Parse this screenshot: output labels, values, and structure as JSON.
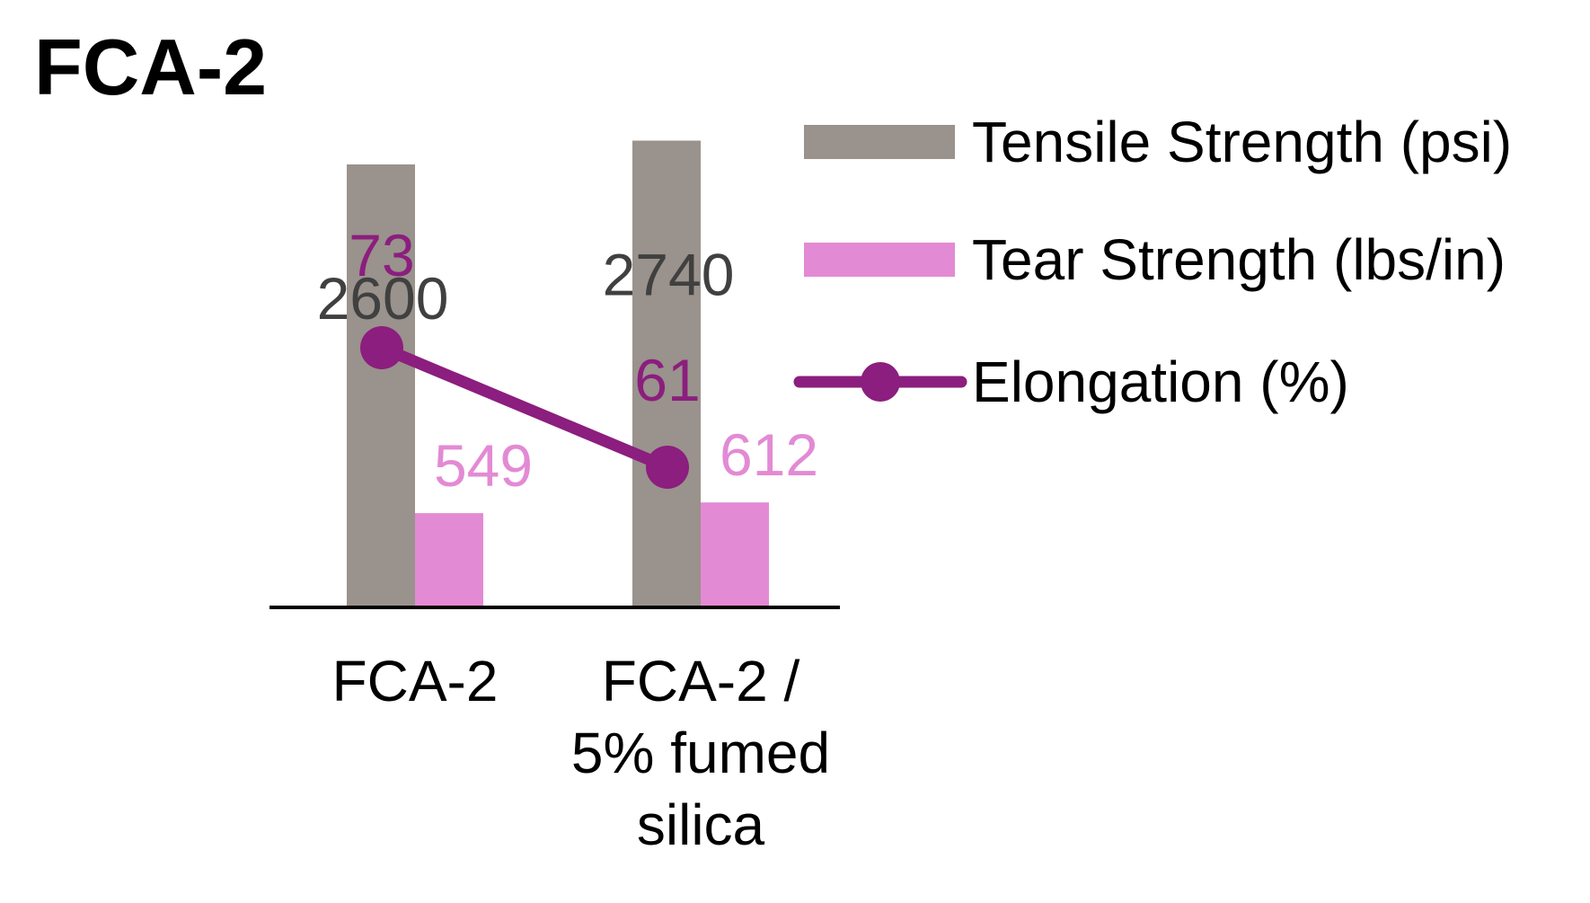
{
  "chart_data": {
    "type": "bar",
    "title": "FCA-2",
    "categories": [
      "FCA-2",
      "FCA-2 / 5% fumed silica"
    ],
    "category_lines": [
      [
        "FCA-2"
      ],
      [
        "FCA-2 /",
        "5% fumed",
        "silica"
      ]
    ],
    "series": [
      {
        "name": "Tensile Strength (psi)",
        "kind": "bar",
        "axis": "primary",
        "color": "#9a928c",
        "label_color": "#404040",
        "values": [
          2600,
          2740
        ]
      },
      {
        "name": "Tear Strength (lbs/in)",
        "kind": "bar",
        "axis": "primary",
        "color": "#e38ad4",
        "label_color": "#e38ad4",
        "values": [
          549,
          612
        ]
      },
      {
        "name": "Elongation (%)",
        "kind": "line",
        "axis": "secondary",
        "color": "#8b1e7e",
        "label_color": "#8b1e7e",
        "values": [
          73,
          61
        ]
      }
    ],
    "ylim": [
      0,
      3000
    ],
    "y2lim": [
      15,
      80
    ],
    "xlabel": "",
    "ylabel": "",
    "grid": false,
    "legend_position": "right"
  }
}
